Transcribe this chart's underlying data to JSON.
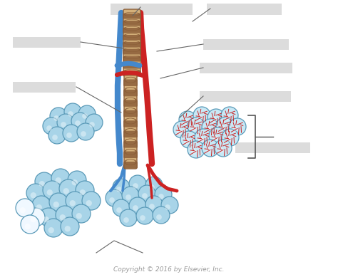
{
  "background_color": "#ffffff",
  "alveoli_fill": "#a8d4e8",
  "alveoli_fill_light": "#c8e8f5",
  "alveoli_edge": "#5a9ab8",
  "alveoli_white_fill": "#f0f8ff",
  "capillary_color": "#cc2222",
  "bronchiole_tan": "#d4b07a",
  "bronchiole_dark": "#8b5e38",
  "bronchiole_mid": "#c49060",
  "artery_color": "#cc2222",
  "vein_color": "#4488cc",
  "line_color": "#666666",
  "label_box_color": "#bbbbbb",
  "bracket_color": "#555555",
  "copyright_text": "Copyright © 2016 by Elsevier, Inc.",
  "copyright_color": "#999999",
  "copyright_fontsize": 6.5,
  "figsize": [
    4.74,
    3.89
  ],
  "dpi": 100,
  "xlim": [
    0,
    474
  ],
  "ylim": [
    0,
    389
  ]
}
